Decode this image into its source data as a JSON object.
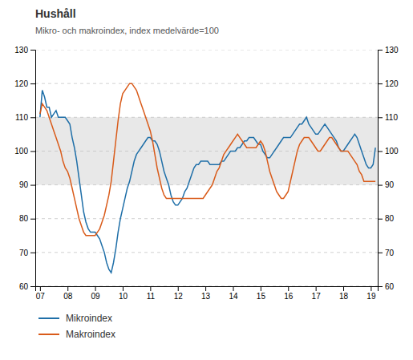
{
  "chart_data": {
    "type": "line",
    "title": "Hushåll",
    "subtitle": "Mikro- och makroindex, index medelvärde=100",
    "x": [
      2007,
      2007.0833,
      2007.1667,
      2007.25,
      2007.3333,
      2007.4167,
      2007.5,
      2007.5833,
      2007.6667,
      2007.75,
      2007.8333,
      2007.9167,
      2008,
      2008.0833,
      2008.1667,
      2008.25,
      2008.3333,
      2008.4167,
      2008.5,
      2008.5833,
      2008.6667,
      2008.75,
      2008.8333,
      2008.9167,
      2009,
      2009.0833,
      2009.1667,
      2009.25,
      2009.3333,
      2009.4167,
      2009.5,
      2009.5833,
      2009.6667,
      2009.75,
      2009.8333,
      2009.9167,
      2010,
      2010.0833,
      2010.1667,
      2010.25,
      2010.3333,
      2010.4167,
      2010.5,
      2010.5833,
      2010.6667,
      2010.75,
      2010.8333,
      2010.9167,
      2011,
      2011.0833,
      2011.1667,
      2011.25,
      2011.3333,
      2011.4167,
      2011.5,
      2011.5833,
      2011.6667,
      2011.75,
      2011.8333,
      2011.9167,
      2012,
      2012.0833,
      2012.1667,
      2012.25,
      2012.3333,
      2012.4167,
      2012.5,
      2012.5833,
      2012.6667,
      2012.75,
      2012.8333,
      2012.9167,
      2013,
      2013.0833,
      2013.1667,
      2013.25,
      2013.3333,
      2013.4167,
      2013.5,
      2013.5833,
      2013.6667,
      2013.75,
      2013.8333,
      2013.9167,
      2014,
      2014.0833,
      2014.1667,
      2014.25,
      2014.3333,
      2014.4167,
      2014.5,
      2014.5833,
      2014.6667,
      2014.75,
      2014.8333,
      2014.9167,
      2015,
      2015.0833,
      2015.1667,
      2015.25,
      2015.3333,
      2015.4167,
      2015.5,
      2015.5833,
      2015.6667,
      2015.75,
      2015.8333,
      2015.9167,
      2016,
      2016.0833,
      2016.1667,
      2016.25,
      2016.3333,
      2016.4167,
      2016.5,
      2016.5833,
      2016.6667,
      2016.75,
      2016.8333,
      2016.9167,
      2017,
      2017.0833,
      2017.1667,
      2017.25,
      2017.3333,
      2017.4167,
      2017.5,
      2017.5833,
      2017.6667,
      2017.75,
      2017.8333,
      2017.9167,
      2018,
      2018.0833,
      2018.1667,
      2018.25,
      2018.3333,
      2018.4167,
      2018.5,
      2018.5833,
      2018.6667,
      2018.75,
      2018.8333,
      2018.9167,
      2019,
      2019.0833,
      2019.1667
    ],
    "series": [
      {
        "name": "Mikroindex",
        "color": "#1f6fa8",
        "values": [
          110,
          118,
          116,
          113,
          113,
          110,
          111,
          112,
          110,
          110,
          110,
          110,
          109,
          108,
          104,
          101,
          97,
          92,
          87,
          82,
          79,
          77,
          76,
          76,
          76,
          75,
          74,
          72,
          70,
          67,
          65,
          64,
          67,
          71,
          76,
          80,
          83,
          86,
          89,
          91,
          94,
          97,
          99,
          100,
          101,
          102,
          103,
          104,
          104,
          103,
          103,
          102,
          100,
          97,
          94,
          92,
          90,
          87,
          85,
          84,
          84,
          85,
          86,
          88,
          89,
          91,
          93,
          95,
          96,
          96,
          97,
          97,
          97,
          97,
          96,
          96,
          96,
          96,
          96,
          97,
          97,
          98,
          99,
          100,
          100,
          100,
          101,
          101,
          102,
          103,
          103,
          104,
          104,
          104,
          103,
          102,
          102,
          100,
          99,
          98,
          98,
          99,
          100,
          101,
          102,
          103,
          104,
          104,
          104,
          104,
          105,
          106,
          107,
          108,
          108,
          109,
          110,
          108,
          107,
          106,
          105,
          105,
          106,
          107,
          108,
          107,
          106,
          105,
          104,
          103,
          101,
          100,
          100,
          101,
          102,
          103,
          104,
          105,
          104,
          102,
          100,
          98,
          96,
          95,
          95,
          96,
          101
        ]
      },
      {
        "name": "Makroindex",
        "color": "#d95b1a",
        "values": [
          111,
          114,
          113,
          112,
          110,
          108,
          106,
          104,
          102,
          100,
          97,
          95,
          94,
          92,
          89,
          86,
          83,
          80,
          78,
          76,
          75,
          75,
          75,
          75,
          75,
          76,
          77,
          79,
          81,
          84,
          87,
          91,
          97,
          103,
          109,
          114,
          117,
          118,
          119,
          120,
          120,
          119,
          118,
          116,
          114,
          112,
          110,
          108,
          106,
          103,
          99,
          95,
          92,
          89,
          87,
          86,
          86,
          86,
          86,
          86,
          86,
          86,
          86,
          86,
          86,
          86,
          86,
          86,
          86,
          86,
          86,
          86,
          87,
          88,
          89,
          90,
          92,
          94,
          95,
          97,
          99,
          100,
          101,
          102,
          103,
          104,
          105,
          104,
          103,
          102,
          101,
          101,
          101,
          101,
          101,
          102,
          103,
          102,
          100,
          97,
          94,
          92,
          90,
          88,
          87,
          86,
          86,
          87,
          88,
          91,
          94,
          97,
          100,
          102,
          103,
          104,
          104,
          104,
          103,
          102,
          101,
          100,
          100,
          101,
          102,
          103,
          104,
          104,
          103,
          102,
          101,
          100,
          100,
          100,
          100,
          99,
          98,
          97,
          96,
          94,
          93,
          91,
          91,
          91,
          91,
          91,
          91
        ]
      }
    ],
    "xlim": [
      2006.83,
      2019.25
    ],
    "xticks": [
      {
        "value": 2007,
        "label": "07"
      },
      {
        "value": 2008,
        "label": "08"
      },
      {
        "value": 2009,
        "label": "09"
      },
      {
        "value": 2010,
        "label": "10"
      },
      {
        "value": 2011,
        "label": "11"
      },
      {
        "value": 2012,
        "label": "12"
      },
      {
        "value": 2013,
        "label": "13"
      },
      {
        "value": 2014,
        "label": "14"
      },
      {
        "value": 2015,
        "label": "15"
      },
      {
        "value": 2016,
        "label": "16"
      },
      {
        "value": 2017,
        "label": "17"
      },
      {
        "value": 2018,
        "label": "18"
      },
      {
        "value": 2019,
        "label": "19"
      }
    ],
    "ylim": [
      60,
      130
    ],
    "yticks": [
      60,
      70,
      80,
      90,
      100,
      110,
      120,
      130
    ],
    "y2lim": [
      60,
      130
    ],
    "y2ticks": [
      60,
      70,
      80,
      90,
      100,
      110,
      120,
      130
    ],
    "shaded_band": [
      90,
      110
    ],
    "shaded_color": "#e8e8e8",
    "grid": true,
    "legend": "bottom"
  }
}
